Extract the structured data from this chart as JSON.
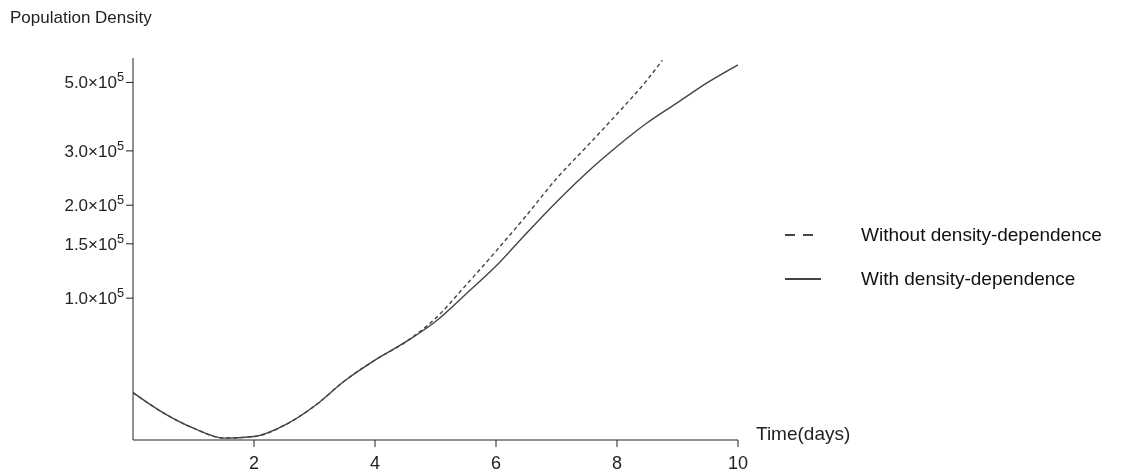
{
  "chart_data": {
    "type": "line",
    "ylabel": "Population Density",
    "xlabel": "Time(days)",
    "log": "y",
    "xlim": [
      0,
      10
    ],
    "xticks": [
      2,
      4,
      6,
      8,
      10
    ],
    "ylim": [
      34700,
      600000
    ],
    "yticks": [
      {
        "value": 100000,
        "label": "1.0×10$^{5}$"
      },
      {
        "value": 150000,
        "label": "1.5×10$^{5}$"
      },
      {
        "value": 200000,
        "label": "2.0×10$^{5}$"
      },
      {
        "value": 300000,
        "label": "3.0×10$^{5}$"
      },
      {
        "value": 500000,
        "label": "5.0×10$^{5}$"
      }
    ],
    "legend": "right",
    "marker": "none",
    "series": [
      {
        "name": "Without density-dependence",
        "color": "#444444",
        "line_style": "dashed",
        "x": [
          0,
          0.5,
          1,
          1.5,
          2,
          2.5,
          3,
          3.5,
          4,
          4.5,
          5,
          5.5,
          6,
          6.5,
          7,
          7.5,
          8,
          8.5,
          8.75
        ],
        "values": [
          49400,
          42500,
          37900,
          35200,
          35600,
          38700,
          44700,
          54000,
          63000,
          72000,
          86000,
          110000,
          142000,
          185000,
          244000,
          310000,
          395000,
          510000,
          590000
        ]
      },
      {
        "name": "With density-dependence",
        "color": "#444444",
        "line_style": "solid",
        "x": [
          0,
          0.5,
          1,
          1.5,
          2,
          2.5,
          3,
          3.5,
          4,
          4.5,
          5,
          5.5,
          6,
          6.5,
          7,
          7.5,
          8,
          8.5,
          9,
          9.5,
          10
        ],
        "values": [
          49400,
          42500,
          37900,
          35200,
          35600,
          38700,
          44700,
          54000,
          63000,
          72000,
          84000,
          103000,
          127000,
          162000,
          205000,
          255000,
          310000,
          370000,
          430000,
          500000,
          570000
        ]
      }
    ]
  }
}
